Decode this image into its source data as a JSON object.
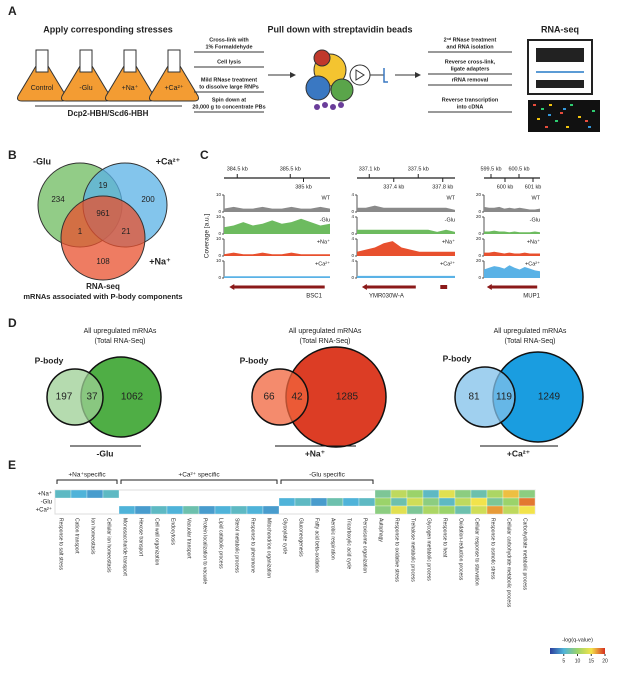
{
  "panel_a": {
    "letter": "A",
    "stress_title": "Apply corresponding stresses",
    "flasks": [
      "Control",
      "-Glu",
      "+Na⁺",
      "+Ca²⁺"
    ],
    "strain": "Dcp2-HBH/Scd6-HBH",
    "steps_1": [
      [
        "Cross-link with",
        "1% Formaldehyde"
      ],
      [
        "Cell lysis"
      ],
      [
        "Mild RNase treatment",
        "to dissolve large RNPs"
      ],
      [
        "Spin down at",
        "20,000 g to concentrate PBs"
      ]
    ],
    "pulldown": "Pull down with streptavidin beads",
    "steps_2": [
      [
        "2ⁿᵈ RNase treatment",
        "and RNA isolation"
      ],
      [
        "Reverse cross-link,",
        "ligate adapters"
      ],
      [
        "rRNA removal"
      ],
      [
        "Reverse transcription",
        "into cDNA"
      ]
    ],
    "rnaseq": "RNA-seq"
  },
  "panel_b": {
    "letter": "B",
    "sets": [
      "-Glu",
      "+Ca²⁺",
      "+Na⁺"
    ],
    "counts": [
      234,
      19,
      200,
      961,
      1,
      21,
      108
    ],
    "caption": [
      "RNA-seq",
      "mRNAs associated with P-body components"
    ]
  },
  "panel_c": {
    "letter": "C",
    "ylabel": "Coverage [a.u.]",
    "conditions": [
      "WT",
      "-Glu",
      "+Na⁺",
      "+Ca²⁺"
    ],
    "colors": [
      "#8a8a8a",
      "#6dbb5f",
      "#e8502e",
      "#5ab2e6"
    ],
    "loci": [
      {
        "top_ticks": [
          "384.5 kb",
          "385.5 kb"
        ],
        "bottom_ticks": [
          "385 kb"
        ],
        "ylim": [
          0,
          10
        ],
        "yticks": [
          0,
          10
        ],
        "genes": [
          "BSC1"
        ],
        "coverage": [
          [
            2,
            3,
            2,
            2,
            3,
            2,
            2,
            3,
            2,
            2,
            3,
            2
          ],
          [
            4,
            5,
            7,
            5,
            6,
            8,
            6,
            7,
            9,
            7,
            5,
            6
          ],
          [
            1,
            2,
            1,
            1,
            2,
            1,
            1,
            2,
            1,
            1,
            1,
            1
          ],
          [
            1,
            1,
            1,
            1,
            1,
            1,
            1,
            1,
            1,
            1,
            1,
            1
          ]
        ]
      },
      {
        "top_ticks": [
          "337.1 kb",
          "337.5 kb"
        ],
        "bottom_ticks": [
          "337.4 kb",
          "337.8 kb"
        ],
        "ylim": [
          0,
          4
        ],
        "yticks": [
          0,
          4
        ],
        "genes": [
          "YMR030W-A"
        ],
        "coverage": [
          [
            1,
            1,
            1.5,
            1,
            1,
            1,
            1,
            1,
            1,
            1,
            1,
            0.5
          ],
          [
            1,
            1,
            1,
            1,
            1,
            1,
            1,
            1,
            1,
            0.5,
            1,
            0.5
          ],
          [
            1,
            1.5,
            2,
            3,
            3.5,
            2,
            1.5,
            1,
            1,
            1,
            1,
            1
          ],
          [
            0.5,
            0.5,
            0.5,
            0.5,
            0.5,
            0.5,
            0.5,
            0.5,
            0.5,
            0.5,
            0.5,
            0.5
          ]
        ]
      },
      {
        "top_ticks": [
          "599.5 kb",
          "600.5 kb"
        ],
        "bottom_ticks": [
          "600 kb",
          "601 kb"
        ],
        "ylim": [
          0,
          20
        ],
        "yticks": [
          0,
          20
        ],
        "genes": [
          "MUP1"
        ],
        "coverage": [
          [
            6,
            5,
            5,
            6,
            4,
            5,
            4,
            5,
            4,
            3,
            3,
            4
          ],
          [
            3,
            3,
            4,
            3,
            3,
            2,
            3,
            2,
            2,
            2,
            3,
            2
          ],
          [
            4,
            4,
            5,
            4,
            3,
            4,
            3,
            3,
            4,
            3,
            3,
            3
          ],
          [
            10,
            12,
            14,
            13,
            11,
            15,
            12,
            10,
            13,
            11,
            9,
            8
          ]
        ]
      }
    ]
  },
  "panel_d": {
    "letter": "D",
    "sets": [
      {
        "title": "All upregulated mRNAs",
        "subtitle": "(Total RNA-Seq)",
        "left": "P-body",
        "counts": [
          197,
          37,
          1062
        ],
        "label": "-Glu",
        "colors": [
          "#9ccf94",
          "#4fae45"
        ]
      },
      {
        "title": "All upregulated mRNAs",
        "subtitle": "(Total RNA-Seq)",
        "left": "P-body",
        "counts": [
          66,
          42,
          1285
        ],
        "label": "+Na⁺",
        "colors": [
          "#f0643c",
          "#dc3d25"
        ]
      },
      {
        "title": "All upregulated mRNAs",
        "subtitle": "(Total RNA-Seq)",
        "left": "P-body",
        "counts": [
          81,
          119,
          1249
        ],
        "label": "+Ca²⁺",
        "colors": [
          "#80c0ea",
          "#1a9de0"
        ]
      }
    ]
  },
  "panel_e": {
    "letter": "E",
    "rows": [
      "+Na⁺",
      "-Glu",
      "+Ca²⁺"
    ],
    "groups": [
      "+Na⁺specific",
      "+Ca²⁺ specific",
      "-Glu specific"
    ],
    "columns": [
      "Response to salt stress",
      "Cation transport",
      "Ion homeostasis",
      "Cellular ion homeostasis",
      "Monosaccharide transport",
      "Hexose transport",
      "Cell wall organization",
      "Endocytosis",
      "Vacuolar transport",
      "Protein localization to vacuole",
      "Lipid catabolic process",
      "Sterol metabolic process",
      "Response to pheromone",
      "Mitochondrion organization",
      "Glyoxylate cycle",
      "Gluconeogenesis",
      "Fatty acid beta-oxidation",
      "Aerobic respiration",
      "Tricarboxylic acid cycle",
      "Peroxisome organization",
      "Autophagy",
      "Response to oxidative stress",
      "Trehalose metabolic process",
      "Glycogen metabolic process",
      "Response to heat",
      "Oxidation-reduction process",
      "Cellular response to starvation",
      "Response to osmotic stress",
      "Cellular carbohydrate metabolic process",
      "Carbohydrate metabolic process"
    ],
    "values": [
      [
        6,
        5,
        4,
        6,
        null,
        null,
        null,
        null,
        null,
        null,
        null,
        null,
        null,
        null,
        null,
        null,
        null,
        null,
        null,
        null,
        8,
        12,
        10,
        6,
        14,
        9,
        7,
        11,
        16,
        9
      ],
      [
        null,
        null,
        null,
        null,
        null,
        null,
        null,
        null,
        null,
        null,
        null,
        null,
        null,
        null,
        5,
        6,
        4,
        7,
        5,
        6,
        10,
        7,
        13,
        9,
        6,
        12,
        15,
        8,
        10,
        18
      ],
      [
        null,
        null,
        null,
        null,
        5,
        4,
        6,
        5,
        7,
        4,
        5,
        6,
        5,
        4,
        null,
        null,
        null,
        null,
        null,
        null,
        9,
        14,
        8,
        11,
        10,
        7,
        13,
        17,
        12,
        15
      ]
    ],
    "colorbar": {
      "title": "-log(q-value)",
      "range": [
        0,
        20
      ],
      "ticks": [
        5,
        10,
        15,
        20
      ]
    }
  }
}
